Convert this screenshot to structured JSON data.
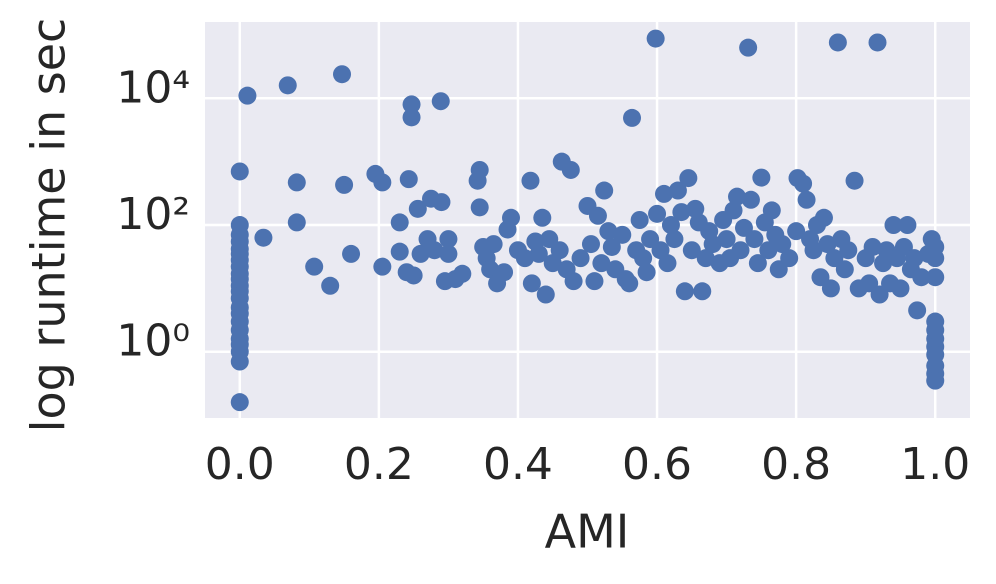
{
  "chart_data": {
    "type": "scatter",
    "x_label": "AMI",
    "y_label": "log runtime in sec",
    "color": "#4c72b0",
    "log_y": true,
    "grid": true,
    "background": "#eaeaf2",
    "xlim": [
      -0.05,
      1.05
    ],
    "ylim": [
      0.09,
      160000
    ],
    "xticks": [
      {
        "value": 0,
        "label": "0.0"
      },
      0.2,
      0.4,
      0.6,
      0.8,
      {
        "value": 1,
        "label": "1.0"
      }
    ],
    "yticks": [
      {
        "value": 1,
        "label": "10⁰"
      },
      {
        "value": 100,
        "label": "10²"
      },
      {
        "value": 10000,
        "label": "10⁴"
      }
    ],
    "x": [
      0,
      0,
      0,
      0,
      0,
      0,
      0,
      0,
      0,
      0,
      0,
      0,
      0,
      0,
      0,
      0,
      0,
      0,
      0,
      0,
      0,
      0,
      0.011,
      0.034,
      0.069,
      0.082,
      0.082,
      0.107,
      0.13,
      0.147,
      0.15,
      0.16,
      0.195,
      0.205,
      0.205,
      0.23,
      0.23,
      0.24,
      0.243,
      0.247,
      0.247,
      0.25,
      0.256,
      0.26,
      0.27,
      0.275,
      0.28,
      0.289,
      0.29,
      0.295,
      0.3,
      0.3,
      0.31,
      0.32,
      0.342,
      0.345,
      0.345,
      0.35,
      0.355,
      0.36,
      0.365,
      0.37,
      0.38,
      0.385,
      0.39,
      0.4,
      0.41,
      0.418,
      0.42,
      0.425,
      0.43,
      0.435,
      0.44,
      0.445,
      0.45,
      0.46,
      0.463,
      0.47,
      0.476,
      0.48,
      0.49,
      0.5,
      0.505,
      0.51,
      0.515,
      0.52,
      0.524,
      0.53,
      0.535,
      0.54,
      0.55,
      0.555,
      0.56,
      0.564,
      0.57,
      0.575,
      0.58,
      0.585,
      0.59,
      0.598,
      0.6,
      0.605,
      0.61,
      0.615,
      0.62,
      0.625,
      0.63,
      0.635,
      0.64,
      0.645,
      0.65,
      0.655,
      0.66,
      0.665,
      0.67,
      0.675,
      0.68,
      0.69,
      0.695,
      0.7,
      0.705,
      0.71,
      0.715,
      0.72,
      0.725,
      0.731,
      0.735,
      0.74,
      0.745,
      0.75,
      0.755,
      0.76,
      0.765,
      0.77,
      0.775,
      0.78,
      0.79,
      0.8,
      0.802,
      0.81,
      0.815,
      0.82,
      0.825,
      0.83,
      0.835,
      0.84,
      0.845,
      0.85,
      0.855,
      0.86,
      0.865,
      0.87,
      0.875,
      0.884,
      0.89,
      0.9,
      0.905,
      0.91,
      0.917,
      0.92,
      0.925,
      0.93,
      0.935,
      0.94,
      0.945,
      0.95,
      0.955,
      0.96,
      0.965,
      0.97,
      0.974,
      0.98,
      0.99,
      0.995,
      1,
      1,
      1,
      1,
      1,
      1,
      1,
      1,
      1,
      1,
      1
    ],
    "values": [
      0.16,
      0.7,
      1,
      1.3,
      1.6,
      2.2,
      3,
      4,
      5,
      7,
      9,
      11,
      14,
      17,
      22,
      28,
      35,
      42,
      55,
      70,
      100,
      700,
      11000,
      63,
      16000,
      470,
      110,
      22,
      11,
      24000,
      430,
      35,
      640,
      470,
      22,
      110,
      38,
      18,
      530,
      8000,
      5000,
      16,
      180,
      35,
      60,
      260,
      40,
      9000,
      230,
      13,
      60,
      35,
      14,
      17,
      500,
      740,
      190,
      45,
      30,
      20,
      50,
      12,
      18,
      85,
      130,
      40,
      30,
      500,
      12,
      55,
      35,
      130,
      8,
      60,
      25,
      40,
      1000,
      20,
      740,
      13,
      30,
      200,
      50,
      13,
      140,
      25,
      350,
      80,
      45,
      20,
      70,
      14,
      12,
      4900,
      40,
      120,
      30,
      18,
      60,
      87500,
      150,
      40,
      310,
      25,
      100,
      60,
      350,
      160,
      9,
      550,
      40,
      180,
      110,
      9,
      30,
      80,
      50,
      25,
      120,
      60,
      30,
      170,
      280,
      40,
      90,
      63000,
      250,
      60,
      25,
      560,
      110,
      40,
      170,
      70,
      20,
      50,
      30,
      80,
      550,
      450,
      250,
      60,
      40,
      100,
      15,
      130,
      50,
      10,
      30,
      76000,
      60,
      20,
      40,
      500,
      10,
      30,
      12,
      45,
      76000,
      8,
      25,
      40,
      12,
      100,
      30,
      10,
      45,
      100,
      20,
      30,
      4.5,
      15,
      35,
      60,
      3,
      2.2,
      1.6,
      1.2,
      0.9,
      0.6,
      0.45,
      0.35,
      15,
      30,
      45
    ]
  }
}
